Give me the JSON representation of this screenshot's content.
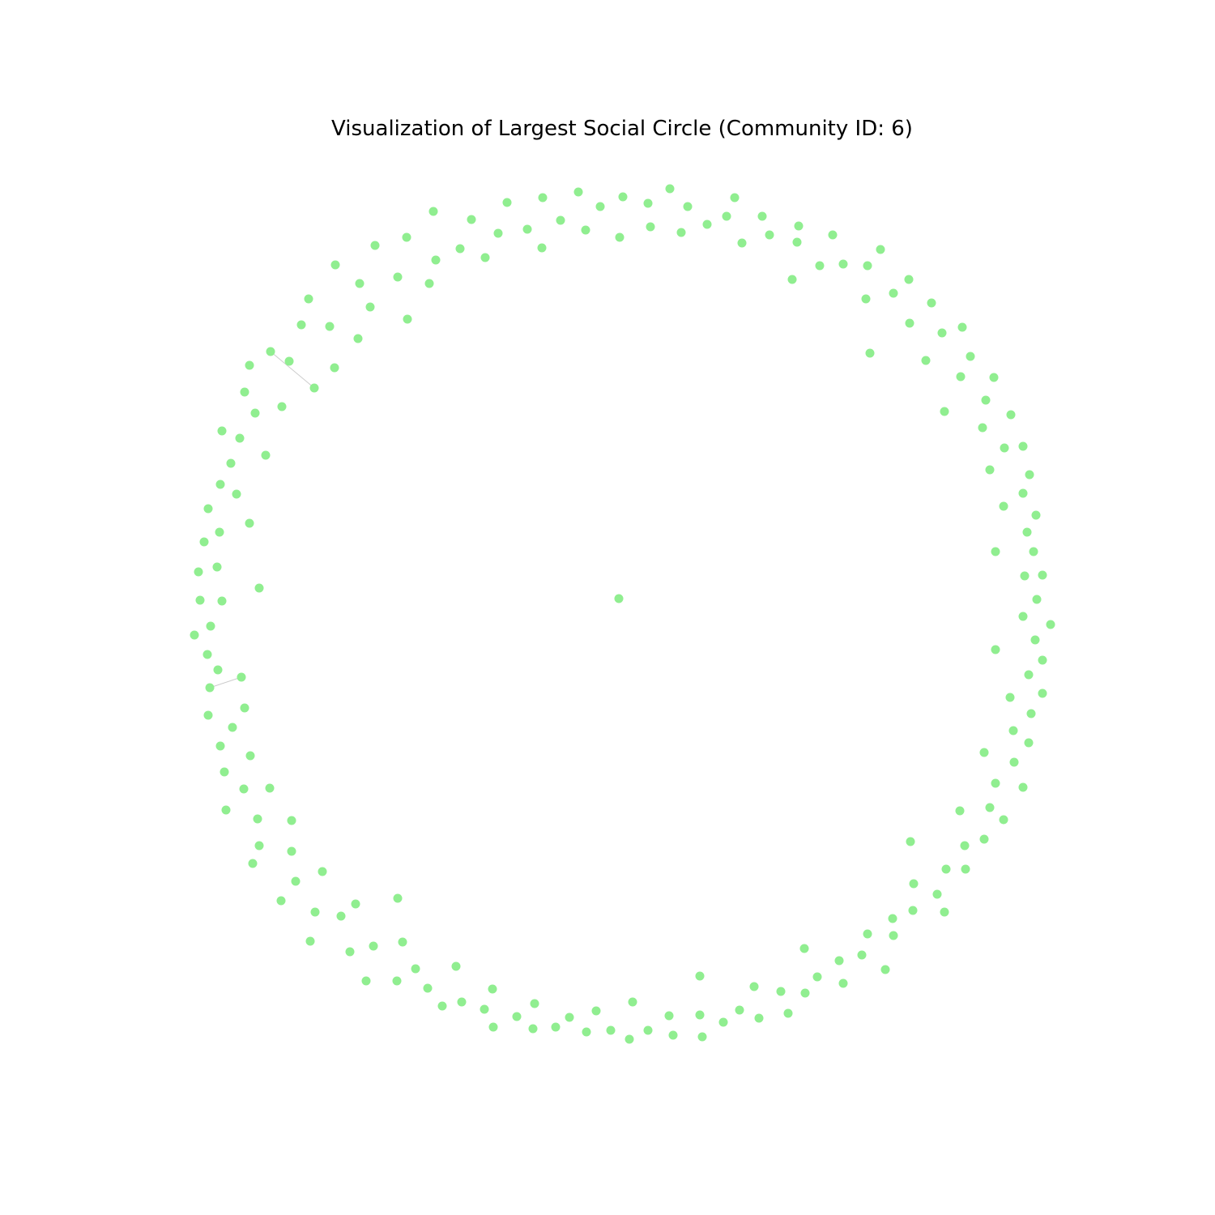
{
  "title": "Visualization of Largest Social Circle (Community ID: 6)",
  "colors": {
    "node": "#90ee90",
    "edge": "#cccccc",
    "background": "#ffffff"
  }
}
